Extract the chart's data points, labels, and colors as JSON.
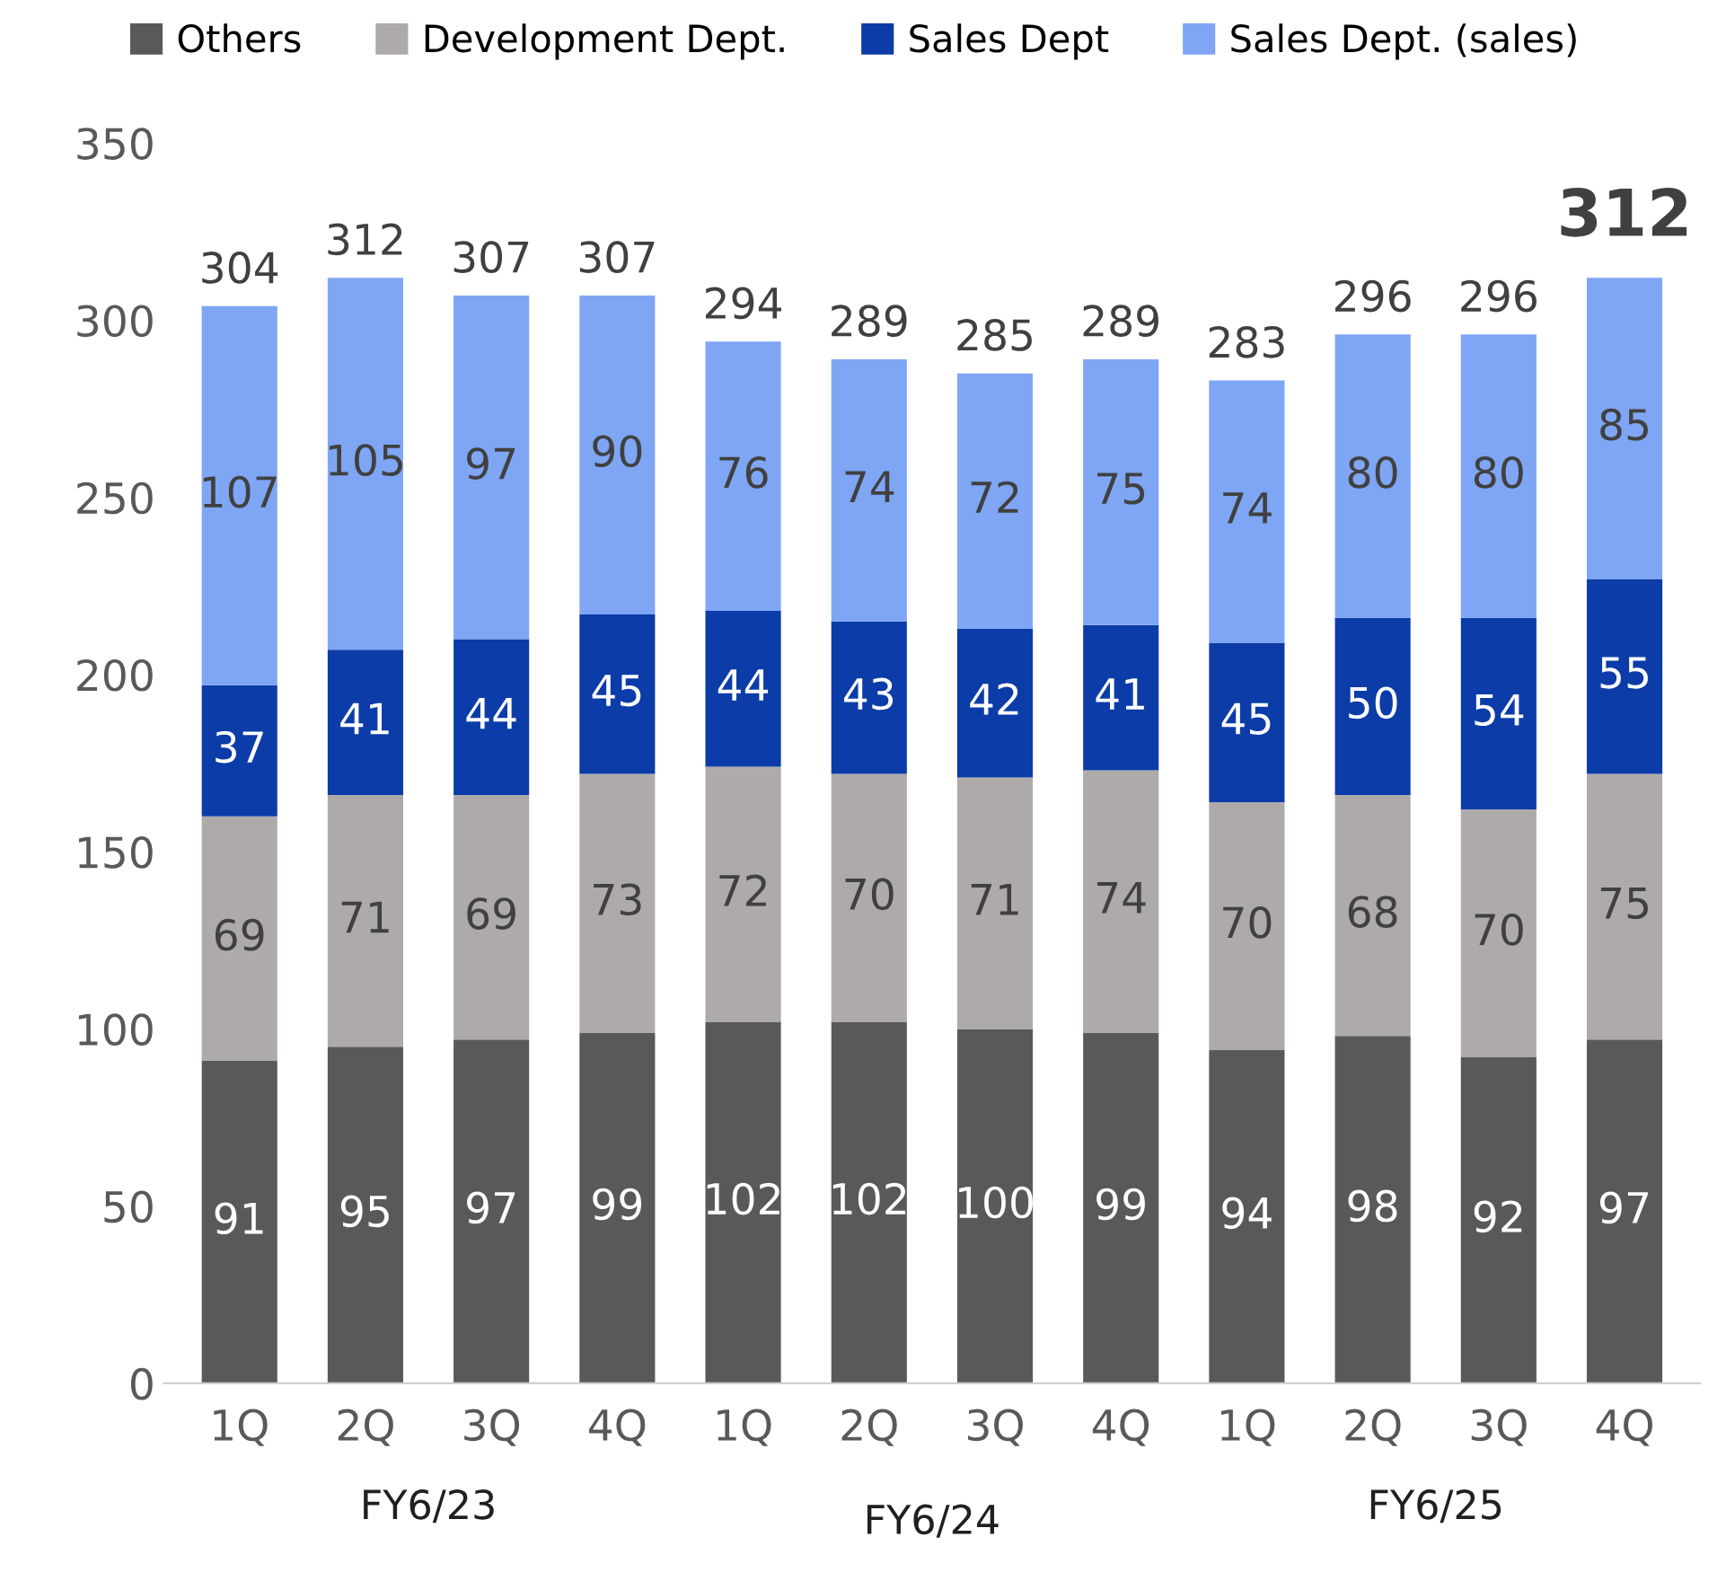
{
  "chart_data": {
    "type": "bar",
    "stacked": true,
    "legend": "top",
    "grid": false,
    "data_labels": true,
    "categories": [
      "1Q",
      "2Q",
      "3Q",
      "4Q",
      "1Q",
      "2Q",
      "3Q",
      "4Q",
      "1Q",
      "2Q",
      "3Q",
      "4Q"
    ],
    "series": [
      {
        "name": "Others",
        "color": "#595959",
        "values": [
          91,
          95,
          97,
          99,
          102,
          102,
          100,
          99,
          94,
          98,
          92,
          97
        ]
      },
      {
        "name": "Development Dept.",
        "color": "#aeaaaa",
        "values": [
          69,
          71,
          69,
          73,
          72,
          70,
          71,
          74,
          70,
          68,
          70,
          75
        ]
      },
      {
        "name": "Sales Dept",
        "color": "#0b3ca8",
        "values": [
          37,
          41,
          44,
          45,
          44,
          43,
          42,
          41,
          45,
          50,
          54,
          55
        ]
      },
      {
        "name": "Sales Dept. (sales)",
        "color": "#7fa6f4",
        "values": [
          107,
          105,
          97,
          90,
          76,
          74,
          72,
          75,
          74,
          80,
          80,
          85
        ]
      }
    ],
    "totals": [
      "304",
      "312",
      "307",
      "307",
      "294",
      "289",
      "285",
      "289",
      "283",
      "296",
      "296",
      "312"
    ],
    "annotations": [
      "FY6/23",
      "FY6/24",
      "FY6/25"
    ],
    "ylim": [
      0,
      350
    ],
    "yticks": [
      0,
      50,
      100,
      150,
      200,
      250,
      300,
      350
    ]
  }
}
